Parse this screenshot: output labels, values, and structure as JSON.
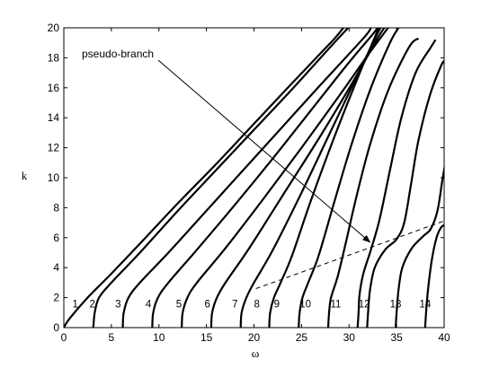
{
  "chart_data": {
    "type": "line",
    "xlabel": "ω",
    "ylabel": "k",
    "xlim": [
      0,
      40
    ],
    "ylim": [
      0,
      20
    ],
    "x_ticks": [
      0,
      5,
      10,
      15,
      20,
      25,
      30,
      35,
      40
    ],
    "y_ticks": [
      0,
      2,
      4,
      6,
      8,
      10,
      12,
      14,
      16,
      18,
      20
    ],
    "grid": false,
    "legend": "none",
    "annotation": {
      "text": "pseudo-branch",
      "arrow_to": [
        32.2,
        5.7
      ]
    },
    "branches": [
      {
        "label": "1",
        "label_at": [
          1.2,
          1.6
        ],
        "points": [
          [
            0,
            0
          ],
          [
            0.6,
            0.6
          ],
          [
            2.5,
            2.0
          ],
          [
            5,
            3.6
          ],
          [
            8,
            5.6
          ],
          [
            12,
            8.3
          ],
          [
            16,
            10.9
          ],
          [
            20,
            13.6
          ],
          [
            24,
            16.3
          ],
          [
            27.3,
            18.5
          ],
          [
            28.5,
            19.3
          ],
          [
            29.4,
            20
          ]
        ]
      },
      {
        "label": "2",
        "label_at": [
          3.0,
          1.6
        ],
        "points": [
          [
            3.1,
            0
          ],
          [
            3.25,
            1.0
          ],
          [
            3.7,
            2.0
          ],
          [
            5,
            3.0
          ],
          [
            8,
            5.0
          ],
          [
            12,
            7.8
          ],
          [
            16,
            10.5
          ],
          [
            20,
            13.2
          ],
          [
            24,
            15.9
          ],
          [
            28,
            18.7
          ],
          [
            29.9,
            20
          ]
        ]
      },
      {
        "label": "3",
        "label_at": [
          5.7,
          1.6
        ],
        "points": [
          [
            6.2,
            0
          ],
          [
            6.3,
            1.0
          ],
          [
            6.8,
            2.0
          ],
          [
            8,
            3.0
          ],
          [
            11,
            5.0
          ],
          [
            15,
            7.8
          ],
          [
            19,
            10.6
          ],
          [
            23,
            13.4
          ],
          [
            27,
            16.2
          ],
          [
            31.5,
            19.3
          ],
          [
            32.3,
            20
          ]
        ]
      },
      {
        "label": "4",
        "label_at": [
          8.9,
          1.6
        ],
        "points": [
          [
            9.3,
            0
          ],
          [
            9.4,
            1.0
          ],
          [
            9.9,
            2.0
          ],
          [
            11,
            3.0
          ],
          [
            14,
            5.2
          ],
          [
            18,
            8.2
          ],
          [
            22,
            11.3
          ],
          [
            26,
            14.5
          ],
          [
            30,
            17.7
          ],
          [
            32.4,
            19.5
          ],
          [
            33.0,
            20
          ]
        ]
      },
      {
        "label": "5",
        "label_at": [
          12.1,
          1.6
        ],
        "points": [
          [
            12.4,
            0
          ],
          [
            12.5,
            1.0
          ],
          [
            13.0,
            2.0
          ],
          [
            14,
            3.0
          ],
          [
            17,
            5.3
          ],
          [
            21,
            8.6
          ],
          [
            25,
            12.0
          ],
          [
            29,
            15.5
          ],
          [
            32,
            18.2
          ],
          [
            34.1,
            20
          ]
        ]
      },
      {
        "label": "6",
        "label_at": [
          15.1,
          1.6
        ],
        "points": [
          [
            15.5,
            0
          ],
          [
            15.6,
            1.0
          ],
          [
            16.1,
            2.0
          ],
          [
            17,
            3.0
          ],
          [
            19.5,
            5.3
          ],
          [
            23,
            8.8
          ],
          [
            27,
            12.8
          ],
          [
            30.5,
            16.5
          ],
          [
            33,
            19.3
          ],
          [
            33.7,
            20
          ]
        ]
      },
      {
        "label": "7",
        "label_at": [
          18.0,
          1.6
        ],
        "points": [
          [
            18.6,
            0
          ],
          [
            18.7,
            1.0
          ],
          [
            19.2,
            2.0
          ],
          [
            20,
            3.0
          ],
          [
            22,
            5.2
          ],
          [
            25,
            9.0
          ],
          [
            28,
            13.0
          ],
          [
            31,
            17.0
          ],
          [
            32.9,
            19.5
          ],
          [
            33.3,
            20
          ]
        ]
      },
      {
        "label": "8",
        "label_at": [
          20.3,
          1.6
        ],
        "points": [
          [
            21.6,
            0
          ],
          [
            21.7,
            1.0
          ],
          [
            22.1,
            2.0
          ],
          [
            22.8,
            3.0
          ],
          [
            24,
            4.8
          ],
          [
            26,
            8.5
          ],
          [
            28.5,
            12.8
          ],
          [
            31,
            16.8
          ],
          [
            32.8,
            19.5
          ],
          [
            33.1,
            20
          ]
        ]
      },
      {
        "label": "9",
        "label_at": [
          22.4,
          1.6
        ],
        "points": [
          [
            24.7,
            0
          ],
          [
            24.8,
            1.0
          ],
          [
            25.1,
            2.0
          ],
          [
            25.7,
            3.0
          ],
          [
            26.8,
            4.8
          ],
          [
            28.5,
            8.5
          ],
          [
            30.3,
            12.3
          ],
          [
            32.3,
            16.0
          ],
          [
            34.3,
            19.0
          ],
          [
            35.2,
            20
          ]
        ]
      },
      {
        "label": "10",
        "label_at": [
          25.4,
          1.6
        ],
        "points": [
          [
            27.8,
            0
          ],
          [
            27.9,
            1.0
          ],
          [
            28.1,
            2.0
          ],
          [
            28.8,
            3.4
          ],
          [
            29.6,
            5.5
          ],
          [
            30.8,
            8.8
          ],
          [
            32.2,
            12.2
          ],
          [
            34.1,
            15.8
          ],
          [
            36.3,
            18.7
          ],
          [
            37.3,
            19.3
          ]
        ]
      },
      {
        "label": "11",
        "label_at": [
          28.6,
          1.6
        ],
        "points": [
          [
            30.9,
            0
          ],
          [
            31.0,
            1.0
          ],
          [
            31.1,
            2.2
          ],
          [
            31.5,
            3.6
          ],
          [
            32.3,
            5.2
          ],
          [
            33.2,
            7.2
          ],
          [
            34.3,
            10.5
          ],
          [
            35.5,
            14.0
          ],
          [
            37.0,
            17.0
          ],
          [
            38.6,
            18.7
          ],
          [
            39.1,
            19.2
          ]
        ]
      },
      {
        "label": "12",
        "label_at": [
          31.6,
          1.6
        ],
        "points": [
          [
            31.9,
            0
          ],
          [
            32.0,
            1.0
          ],
          [
            32.2,
            2.5
          ],
          [
            32.7,
            4.0
          ],
          [
            33.8,
            5.2
          ],
          [
            35.0,
            5.9
          ],
          [
            35.8,
            7.0
          ],
          [
            36.5,
            9.5
          ],
          [
            37.3,
            12.5
          ],
          [
            38.5,
            15.5
          ],
          [
            39.7,
            17.5
          ],
          [
            40.1,
            17.8
          ]
        ]
      },
      {
        "label": "13",
        "label_at": [
          34.9,
          1.6
        ],
        "points": [
          [
            34.9,
            0
          ],
          [
            35.0,
            1.0
          ],
          [
            35.2,
            2.5
          ],
          [
            35.6,
            4.0
          ],
          [
            36.6,
            5.3
          ],
          [
            37.8,
            6.1
          ],
          [
            38.6,
            6.6
          ],
          [
            39.3,
            7.8
          ],
          [
            39.8,
            9.8
          ],
          [
            40.1,
            11.0
          ],
          [
            40.2,
            12.4
          ]
        ]
      },
      {
        "label": "14",
        "label_at": [
          38.0,
          1.6
        ],
        "points": [
          [
            38.0,
            0
          ],
          [
            38.1,
            1.0
          ],
          [
            38.3,
            2.5
          ],
          [
            38.7,
            4.5
          ],
          [
            39.2,
            6.0
          ],
          [
            39.7,
            6.7
          ],
          [
            40.2,
            6.9
          ]
        ]
      }
    ],
    "pseudo_branch_line": {
      "style": "dashed",
      "points": [
        [
          20.2,
          2.6
        ],
        [
          40.8,
          7.3
        ]
      ]
    }
  }
}
